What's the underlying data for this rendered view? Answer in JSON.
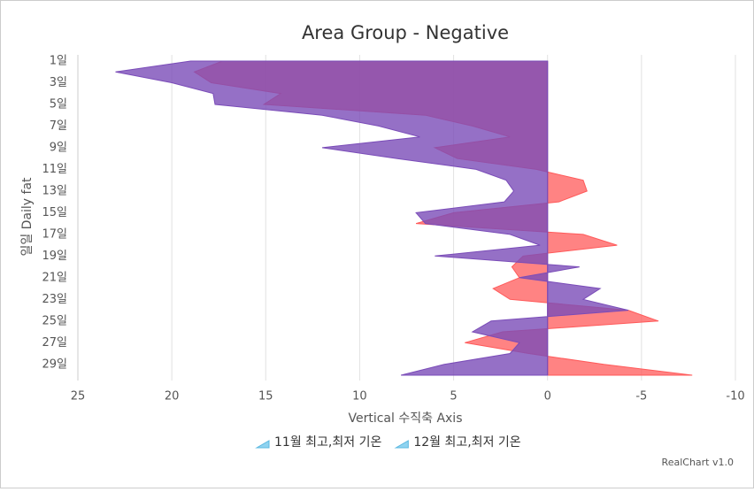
{
  "chart_data": {
    "type": "area",
    "title": "Area Group - Negative",
    "y_axis_title": "일일 Daily fat",
    "x_axis_title": "Vertical 수직축 Axis",
    "credit": "RealChart v1.0",
    "categories": [
      "1일",
      null,
      "3일",
      null,
      "5일",
      null,
      "7일",
      null,
      "9일",
      null,
      "11일",
      null,
      "13일",
      null,
      "15일",
      null,
      "17일",
      null,
      "19일",
      null,
      "21일",
      null,
      "23일",
      null,
      "25일",
      null,
      "27일",
      null,
      "29일",
      null
    ],
    "series": [
      {
        "name": "11월 최고,최저 기온",
        "color": "#ff5a5a",
        "values": [
          17.3,
          18.8,
          17.9,
          14.2,
          15.1,
          6.5,
          4,
          2,
          6,
          4.8,
          0.6,
          -1.9,
          -2.1,
          -0.6,
          5,
          7,
          -1.9,
          -3.7,
          1.3,
          1.9,
          1.5,
          2.9,
          2,
          -4.3,
          -5.9,
          2.4,
          4.4,
          1,
          -3,
          -7.7
        ]
      },
      {
        "name": "12월 최고,최저 기온",
        "color": "#7a4cb8",
        "values": [
          19,
          23,
          20,
          17.8,
          17.7,
          12,
          9,
          6.8,
          12,
          8,
          3.8,
          2.2,
          1.8,
          2.3,
          7,
          6.5,
          2,
          0.4,
          6,
          -1.7,
          1.5,
          -2.8,
          -1.9,
          -4.3,
          3,
          4,
          1.5,
          2,
          5.5,
          7.8
        ]
      }
    ],
    "xlim": [
      25,
      -10
    ],
    "xticks": [
      25,
      20,
      15,
      10,
      5,
      0,
      -5,
      -10
    ],
    "grid": true
  }
}
